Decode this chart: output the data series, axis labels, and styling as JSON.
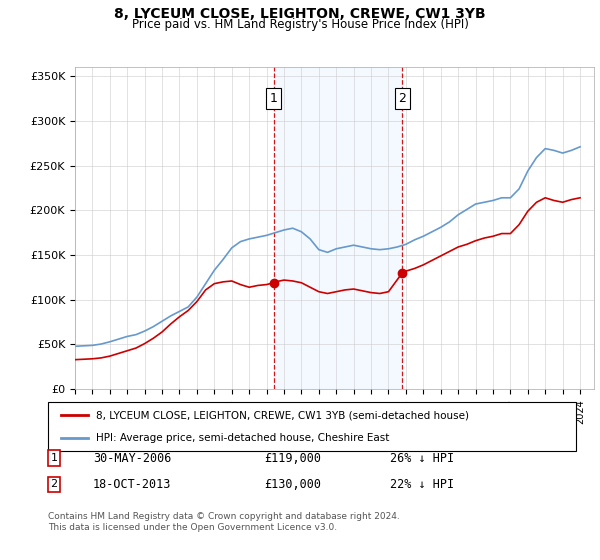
{
  "title": "8, LYCEUM CLOSE, LEIGHTON, CREWE, CW1 3YB",
  "subtitle": "Price paid vs. HM Land Registry's House Price Index (HPI)",
  "ylabel_ticks": [
    "£0",
    "£50K",
    "£100K",
    "£150K",
    "£200K",
    "£250K",
    "£300K",
    "£350K"
  ],
  "ytick_values": [
    0,
    50000,
    100000,
    150000,
    200000,
    250000,
    300000,
    350000
  ],
  "ylim": [
    0,
    360000
  ],
  "sale1_date_num": 2006.41,
  "sale1_price": 119000,
  "sale2_date_num": 2013.79,
  "sale2_price": 130000,
  "legend_line1": "8, LYCEUM CLOSE, LEIGHTON, CREWE, CW1 3YB (semi-detached house)",
  "legend_line2": "HPI: Average price, semi-detached house, Cheshire East",
  "footnote": "Contains HM Land Registry data © Crown copyright and database right 2024.\nThis data is licensed under the Open Government Licence v3.0.",
  "hpi_color": "#6699cc",
  "price_color": "#cc0000",
  "vline_color": "#cc0000",
  "bg_highlight_color": "#ddeeff"
}
